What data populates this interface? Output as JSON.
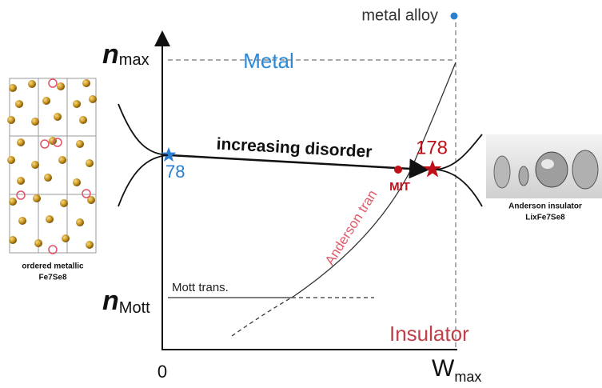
{
  "axes": {
    "n_max": {
      "symbol": "n",
      "subscript": "max"
    },
    "n_mott": {
      "symbol": "n",
      "subscript": "Mott"
    },
    "x_origin": "0",
    "w_max": {
      "symbol": "W",
      "subscript": "max"
    }
  },
  "regions": {
    "metal": "Metal",
    "insulator": "Insulator"
  },
  "labels": {
    "metal_alloy": "metal alloy",
    "increasing_disorder": "increasing disorder",
    "start_point": "78",
    "end_point": "178",
    "mit": "MIT",
    "anderson_transition": "Anderson tran",
    "mott_transition": "Mott trans."
  },
  "left_image": {
    "caption": [
      "ordered metallic",
      "Fe7Se8"
    ]
  },
  "right_image": {
    "caption": [
      "Anderson insulator",
      "LixFe7Se8"
    ]
  }
}
